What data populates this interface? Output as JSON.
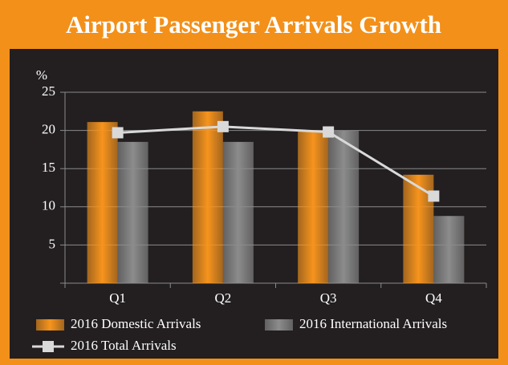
{
  "chart_data": {
    "type": "bar",
    "title": "Airport Passenger Arrivals Growth",
    "y_label": "%",
    "categories": [
      "Q1",
      "Q2",
      "Q3",
      "Q4"
    ],
    "series": [
      {
        "name": "2016 Domestic Arrivals",
        "color": "#f7941d",
        "values": [
          21.1,
          22.5,
          20,
          14.2
        ]
      },
      {
        "name": "2016 International Arrivals",
        "color": "#8c8c8c",
        "values": [
          18.5,
          18.5,
          20,
          8.8
        ]
      },
      {
        "name": "2016 Total Arrivals",
        "type": "line",
        "color": "#d9d9d9",
        "values": [
          19.7,
          20.5,
          19.8,
          11.4
        ]
      }
    ],
    "ylim": [
      0,
      25
    ],
    "yticks": [
      5,
      10,
      15,
      20,
      25
    ],
    "grid": true
  }
}
